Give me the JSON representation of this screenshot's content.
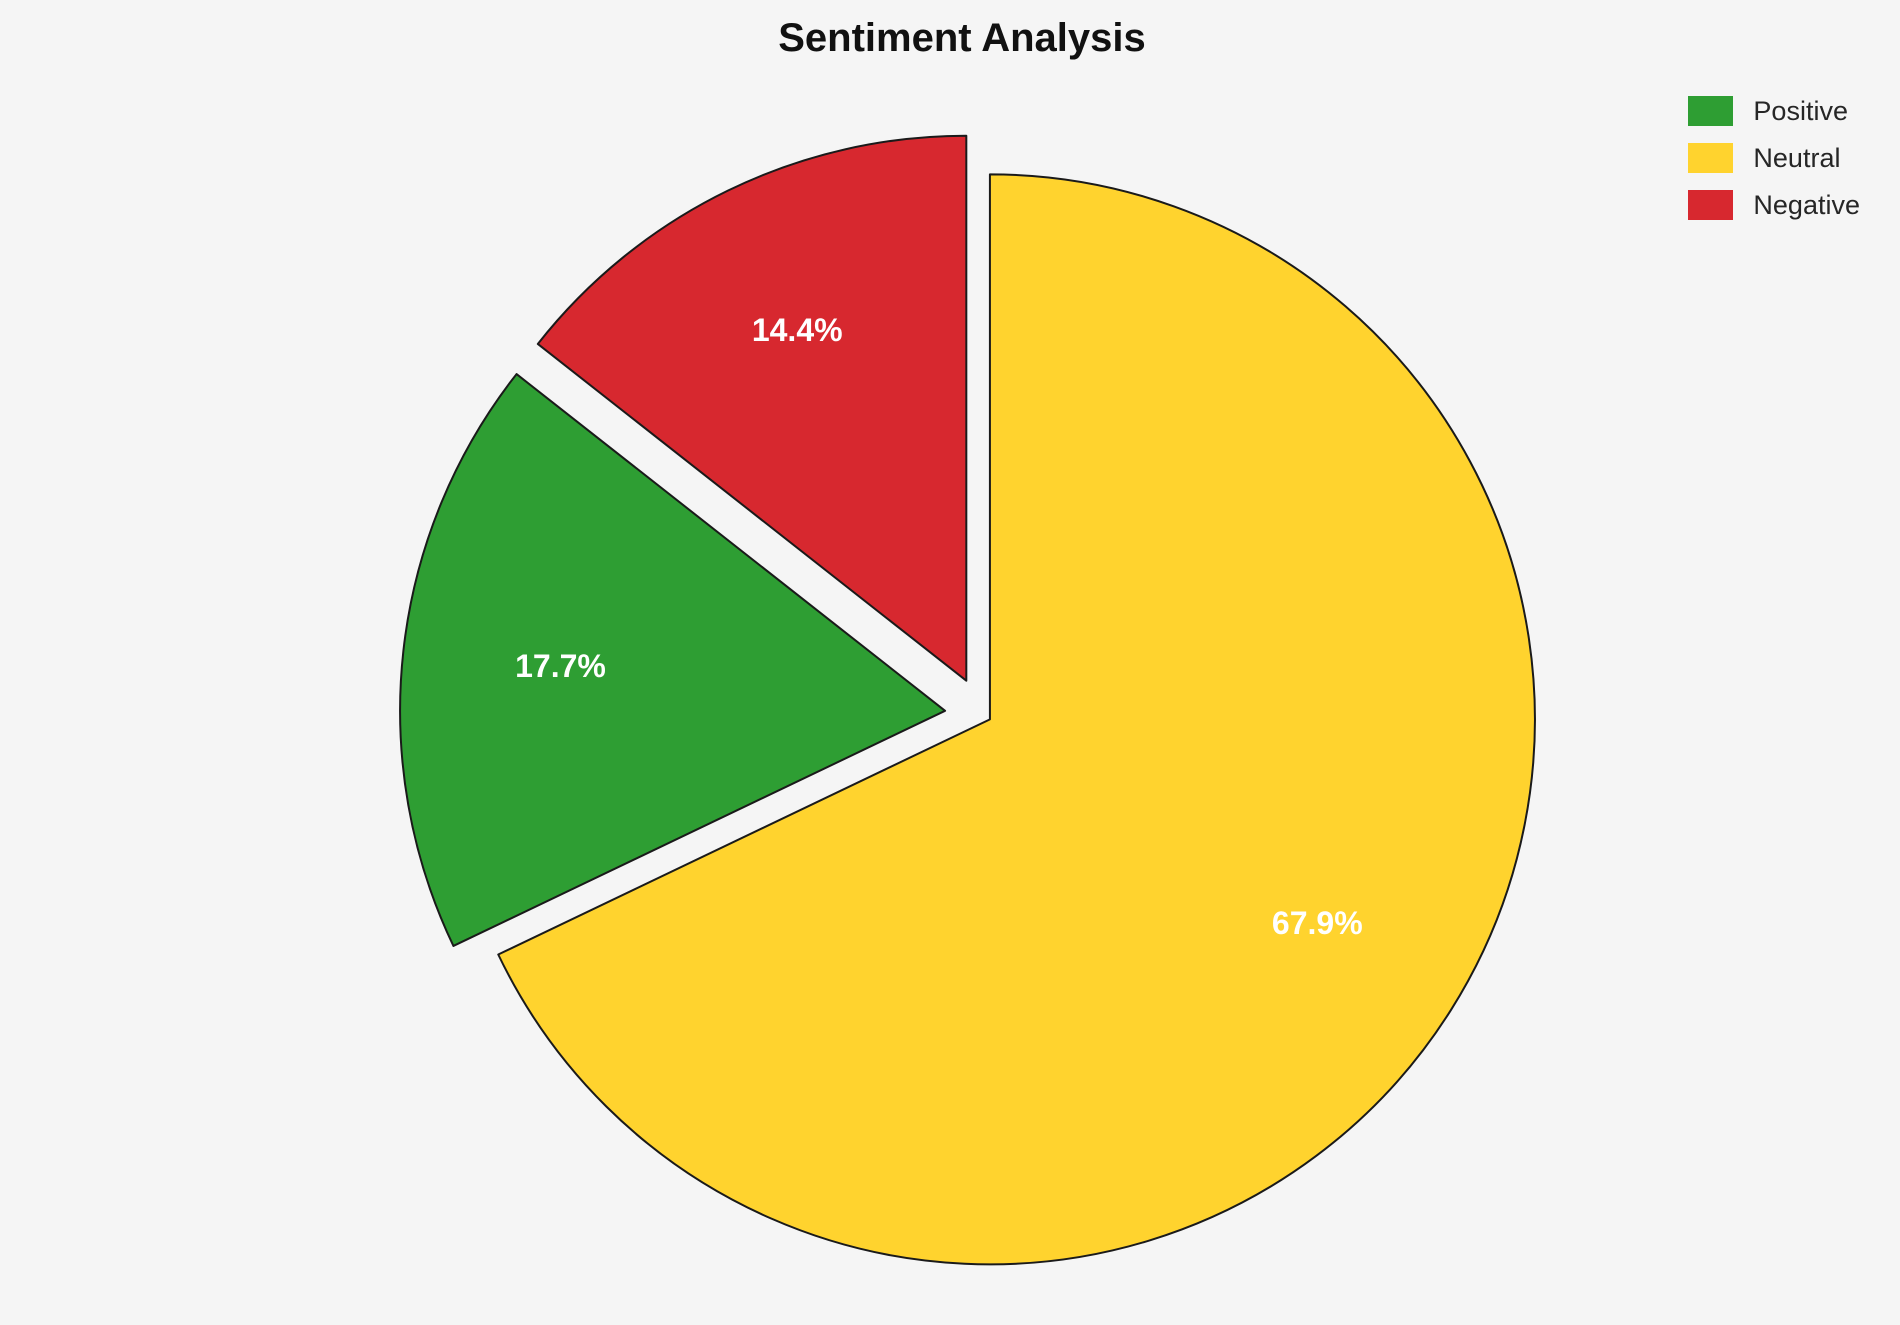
{
  "title": "Sentiment Analysis",
  "legend": {
    "position": "top-right",
    "items": [
      {
        "label": "Positive",
        "color": "#2e9e33"
      },
      {
        "label": "Neutral",
        "color": "#ffd32e"
      },
      {
        "label": "Negative",
        "color": "#d7282f"
      }
    ]
  },
  "chart_data": {
    "type": "pie",
    "title": "Sentiment Analysis",
    "categories": [
      "Positive",
      "Neutral",
      "Negative"
    ],
    "values": [
      17.7,
      67.9,
      14.4
    ],
    "unit": "percent",
    "slices": [
      {
        "label": "Positive",
        "value": 17.7,
        "percent_label": "17.7%",
        "color": "#2e9e33",
        "explode": 0.07
      },
      {
        "label": "Neutral",
        "value": 67.9,
        "percent_label": "67.9%",
        "color": "#ffd32e",
        "explode": 0.015
      },
      {
        "label": "Negative",
        "value": 14.4,
        "percent_label": "14.4%",
        "color": "#d7282f",
        "explode": 0.07
      }
    ],
    "layout": {
      "start_angle_deg": 90,
      "direction": "clockwise",
      "draw_order": [
        "Neutral",
        "Positive",
        "Negative"
      ],
      "label_radius_frac": 0.71,
      "label_color": "#ffffff",
      "edge_color": "#1a1a1a",
      "edge_width": 2,
      "legend_position": "top-right",
      "background": "#f5f5f5"
    }
  }
}
